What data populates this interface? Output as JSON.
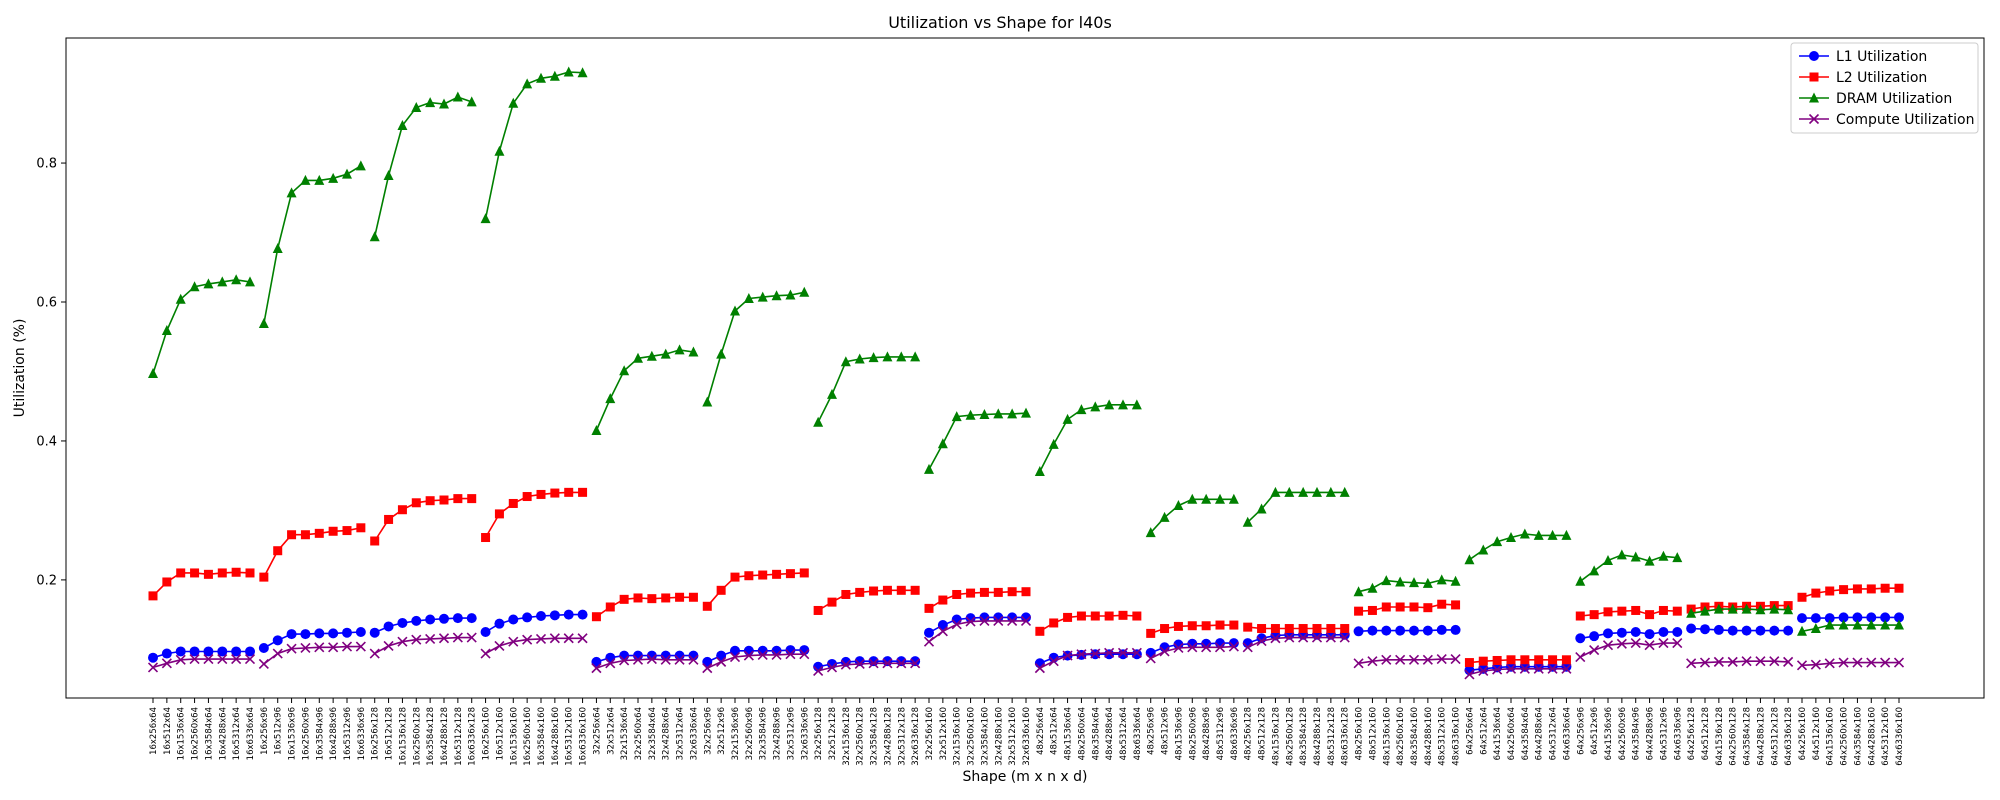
{
  "chart_data": {
    "type": "line",
    "title": "Utilization vs Shape for l40s",
    "xlabel": "Shape (m x n x d)",
    "ylabel": "Utilization (%)",
    "ylim": [
      0.03,
      0.98
    ],
    "yticks": [
      0.2,
      0.4,
      0.6,
      0.8
    ],
    "grid": false,
    "legend_position": "top-right",
    "categories": [
      "16x256x64",
      "16x512x64",
      "16x1536x64",
      "16x2560x64",
      "16x3584x64",
      "16x4288x64",
      "16x5312x64",
      "16x6336x64",
      "16x256x96",
      "16x512x96",
      "16x1536x96",
      "16x2560x96",
      "16x3584x96",
      "16x4288x96",
      "16x5312x96",
      "16x6336x96",
      "16x256x128",
      "16x512x128",
      "16x1536x128",
      "16x2560x128",
      "16x3584x128",
      "16x4288x128",
      "16x5312x128",
      "16x6336x128",
      "16x256x160",
      "16x512x160",
      "16x1536x160",
      "16x2560x160",
      "16x3584x160",
      "16x4288x160",
      "16x5312x160",
      "16x6336x160",
      "32x256x64",
      "32x512x64",
      "32x1536x64",
      "32x2560x64",
      "32x3584x64",
      "32x4288x64",
      "32x5312x64",
      "32x6336x64",
      "32x256x96",
      "32x512x96",
      "32x1536x96",
      "32x2560x96",
      "32x3584x96",
      "32x4288x96",
      "32x5312x96",
      "32x6336x96",
      "32x256x128",
      "32x512x128",
      "32x1536x128",
      "32x2560x128",
      "32x3584x128",
      "32x4288x128",
      "32x5312x128",
      "32x6336x128",
      "32x256x160",
      "32x512x160",
      "32x1536x160",
      "32x2560x160",
      "32x3584x160",
      "32x4288x160",
      "32x5312x160",
      "32x6336x160",
      "48x256x64",
      "48x512x64",
      "48x1536x64",
      "48x2560x64",
      "48x3584x64",
      "48x4288x64",
      "48x5312x64",
      "48x6336x64",
      "48x256x96",
      "48x512x96",
      "48x1536x96",
      "48x2560x96",
      "48x4288x96",
      "48x5312x96",
      "48x6336x96",
      "48x256x128",
      "48x512x128",
      "48x1536x128",
      "48x2560x128",
      "48x3584x128",
      "48x4288x128",
      "48x5312x128",
      "48x6336x128",
      "48x256x160",
      "48x512x160",
      "48x1536x160",
      "48x2560x160",
      "48x3584x160",
      "48x4288x160",
      "48x5312x160",
      "48x6336x160",
      "64x256x64",
      "64x512x64",
      "64x1536x64",
      "64x2560x64",
      "64x3584x64",
      "64x4288x64",
      "64x5312x64",
      "64x6336x64",
      "64x256x96",
      "64x512x96",
      "64x1536x96",
      "64x2560x96",
      "64x3584x96",
      "64x4288x96",
      "64x5312x96",
      "64x6336x96",
      "64x256x128",
      "64x512x128",
      "64x1536x128",
      "64x2560x128",
      "64x3584x128",
      "64x4288x128",
      "64x5312x128",
      "64x6336x128",
      "64x256x160",
      "64x512x160",
      "64x1536x160",
      "64x2560x160",
      "64x3584x160",
      "64x4288x160",
      "64x5312x160",
      "64x6336x160"
    ],
    "segments": [
      8,
      8,
      8,
      8,
      8,
      8,
      8,
      8,
      8,
      7,
      8,
      8,
      8,
      8,
      8,
      8
    ],
    "series": [
      {
        "name": "L1 Utilization",
        "color": "#0000ff",
        "marker": "circle",
        "values": [
          0.088,
          0.094,
          0.097,
          0.097,
          0.097,
          0.097,
          0.097,
          0.097,
          0.102,
          0.113,
          0.122,
          0.122,
          0.123,
          0.123,
          0.124,
          0.125,
          0.124,
          0.133,
          0.138,
          0.141,
          0.143,
          0.144,
          0.145,
          0.145,
          0.125,
          0.137,
          0.143,
          0.146,
          0.148,
          0.149,
          0.15,
          0.15,
          0.082,
          0.088,
          0.091,
          0.091,
          0.091,
          0.091,
          0.091,
          0.091,
          0.082,
          0.091,
          0.098,
          0.098,
          0.098,
          0.098,
          0.099,
          0.099,
          0.075,
          0.079,
          0.082,
          0.083,
          0.083,
          0.083,
          0.083,
          0.083,
          0.124,
          0.135,
          0.143,
          0.145,
          0.146,
          0.146,
          0.146,
          0.146,
          0.08,
          0.088,
          0.091,
          0.092,
          0.093,
          0.093,
          0.093,
          0.093,
          0.095,
          0.103,
          0.107,
          0.108,
          0.108,
          0.109,
          0.109,
          0.109,
          0.116,
          0.12,
          0.121,
          0.121,
          0.121,
          0.121,
          0.121,
          0.126,
          0.127,
          0.127,
          0.127,
          0.127,
          0.127,
          0.128,
          0.128,
          0.07,
          0.072,
          0.074,
          0.075,
          0.075,
          0.075,
          0.075,
          0.075,
          0.116,
          0.119,
          0.123,
          0.124,
          0.125,
          0.122,
          0.125,
          0.125,
          0.13,
          0.129,
          0.128,
          0.127,
          0.127,
          0.127,
          0.127,
          0.127,
          0.145,
          0.145,
          0.145,
          0.146,
          0.146,
          0.146,
          0.146,
          0.146
        ]
      },
      {
        "name": "L2 Utilization",
        "color": "#ff0000",
        "marker": "square",
        "values": [
          0.177,
          0.197,
          0.21,
          0.21,
          0.208,
          0.21,
          0.211,
          0.21,
          0.204,
          0.242,
          0.265,
          0.265,
          0.267,
          0.27,
          0.271,
          0.275,
          0.256,
          0.287,
          0.301,
          0.311,
          0.314,
          0.315,
          0.317,
          0.317,
          0.261,
          0.295,
          0.31,
          0.32,
          0.323,
          0.325,
          0.326,
          0.326,
          0.147,
          0.161,
          0.172,
          0.174,
          0.173,
          0.174,
          0.175,
          0.175,
          0.162,
          0.185,
          0.204,
          0.206,
          0.207,
          0.208,
          0.209,
          0.21,
          0.156,
          0.168,
          0.179,
          0.182,
          0.184,
          0.185,
          0.185,
          0.185,
          0.159,
          0.171,
          0.179,
          0.181,
          0.182,
          0.182,
          0.183,
          0.183,
          0.126,
          0.138,
          0.146,
          0.148,
          0.148,
          0.148,
          0.149,
          0.148,
          0.123,
          0.13,
          0.133,
          0.134,
          0.134,
          0.135,
          0.135,
          0.132,
          0.13,
          0.13,
          0.13,
          0.13,
          0.13,
          0.13,
          0.13,
          0.155,
          0.156,
          0.161,
          0.161,
          0.161,
          0.16,
          0.165,
          0.164,
          0.081,
          0.083,
          0.084,
          0.085,
          0.085,
          0.085,
          0.085,
          0.085,
          0.148,
          0.15,
          0.154,
          0.155,
          0.156,
          0.15,
          0.156,
          0.155,
          0.158,
          0.161,
          0.162,
          0.161,
          0.162,
          0.162,
          0.163,
          0.163,
          0.175,
          0.181,
          0.184,
          0.186,
          0.187,
          0.187,
          0.188,
          0.188
        ]
      },
      {
        "name": "DRAM Utilization",
        "color": "#008000",
        "marker": "triangle",
        "values": [
          0.497,
          0.559,
          0.604,
          0.622,
          0.626,
          0.629,
          0.632,
          0.629,
          0.569,
          0.677,
          0.757,
          0.775,
          0.775,
          0.778,
          0.784,
          0.796,
          0.694,
          0.782,
          0.854,
          0.88,
          0.887,
          0.885,
          0.895,
          0.888,
          0.72,
          0.817,
          0.886,
          0.914,
          0.922,
          0.925,
          0.931,
          0.93,
          0.415,
          0.461,
          0.501,
          0.519,
          0.522,
          0.525,
          0.531,
          0.528,
          0.456,
          0.525,
          0.587,
          0.605,
          0.607,
          0.609,
          0.61,
          0.614,
          0.427,
          0.467,
          0.514,
          0.518,
          0.52,
          0.521,
          0.521,
          0.521,
          0.359,
          0.396,
          0.435,
          0.437,
          0.438,
          0.439,
          0.439,
          0.44,
          0.356,
          0.395,
          0.431,
          0.445,
          0.449,
          0.452,
          0.452,
          0.452,
          0.268,
          0.29,
          0.307,
          0.316,
          0.316,
          0.316,
          0.316,
          0.283,
          0.302,
          0.326,
          0.326,
          0.326,
          0.326,
          0.326,
          0.326,
          0.183,
          0.188,
          0.199,
          0.197,
          0.196,
          0.195,
          0.2,
          0.198,
          0.229,
          0.243,
          0.255,
          0.261,
          0.266,
          0.264,
          0.264,
          0.264,
          0.198,
          0.213,
          0.228,
          0.236,
          0.233,
          0.227,
          0.234,
          0.232,
          0.152,
          0.155,
          0.158,
          0.158,
          0.158,
          0.157,
          0.158,
          0.157,
          0.126,
          0.13,
          0.135,
          0.135,
          0.135,
          0.135,
          0.135,
          0.135
        ]
      },
      {
        "name": "Compute Utilization",
        "color": "#800080",
        "marker": "x",
        "values": [
          0.074,
          0.08,
          0.085,
          0.086,
          0.086,
          0.086,
          0.086,
          0.086,
          0.079,
          0.094,
          0.101,
          0.102,
          0.103,
          0.103,
          0.104,
          0.104,
          0.094,
          0.105,
          0.111,
          0.114,
          0.115,
          0.116,
          0.117,
          0.117,
          0.094,
          0.105,
          0.111,
          0.114,
          0.115,
          0.116,
          0.116,
          0.116,
          0.073,
          0.08,
          0.084,
          0.085,
          0.086,
          0.085,
          0.085,
          0.085,
          0.073,
          0.082,
          0.089,
          0.091,
          0.092,
          0.092,
          0.093,
          0.093,
          0.069,
          0.074,
          0.078,
          0.079,
          0.08,
          0.08,
          0.08,
          0.08,
          0.111,
          0.126,
          0.136,
          0.14,
          0.141,
          0.141,
          0.141,
          0.141,
          0.073,
          0.083,
          0.091,
          0.093,
          0.094,
          0.095,
          0.095,
          0.095,
          0.087,
          0.097,
          0.102,
          0.103,
          0.103,
          0.103,
          0.104,
          0.103,
          0.112,
          0.116,
          0.117,
          0.117,
          0.117,
          0.117,
          0.117,
          0.08,
          0.083,
          0.085,
          0.085,
          0.085,
          0.085,
          0.086,
          0.086,
          0.064,
          0.069,
          0.071,
          0.072,
          0.072,
          0.072,
          0.072,
          0.072,
          0.089,
          0.099,
          0.106,
          0.108,
          0.109,
          0.106,
          0.109,
          0.109,
          0.08,
          0.081,
          0.082,
          0.082,
          0.083,
          0.083,
          0.083,
          0.082,
          0.077,
          0.078,
          0.08,
          0.081,
          0.081,
          0.081,
          0.081,
          0.081
        ]
      }
    ]
  }
}
